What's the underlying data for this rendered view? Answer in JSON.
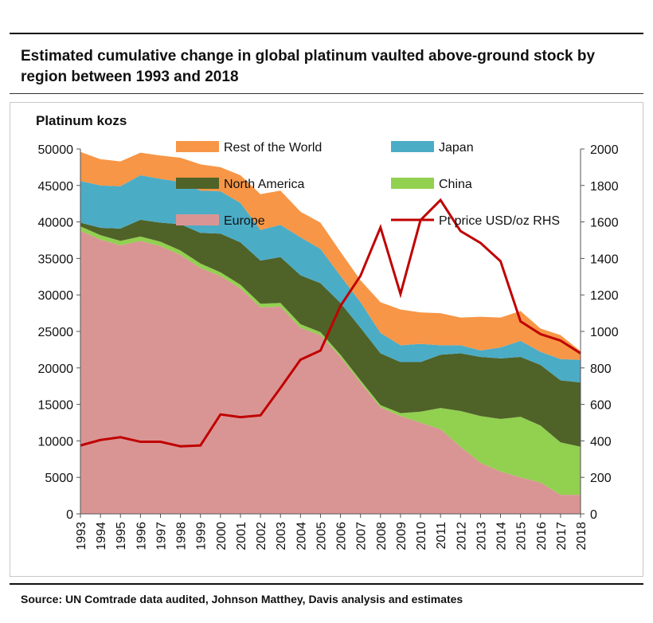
{
  "page": {
    "title": "Estimated cumulative change in global platinum vaulted above-ground stock by region between 1993 and 2018",
    "source": "Source: UN Comtrade data audited, Johnson Matthey, Davis analysis and estimates"
  },
  "chart_data": {
    "type": "area",
    "stacked": true,
    "ylabel": "Platinum kozs",
    "ylim": [
      0,
      50000
    ],
    "y_ticks": [
      "0",
      "5000",
      "10000",
      "15000",
      "20000",
      "25000",
      "30000",
      "35000",
      "40000",
      "45000",
      "50000"
    ],
    "y2lim": [
      0,
      2000
    ],
    "y2_ticks": [
      "0",
      "200",
      "400",
      "600",
      "800",
      "1000",
      "1200",
      "1400",
      "1600",
      "1800",
      "2000"
    ],
    "categories": [
      "1993",
      "1994",
      "1995",
      "1996",
      "1997",
      "1998",
      "1999",
      "2000",
      "2001",
      "2002",
      "2003",
      "2004",
      "2005",
      "2006",
      "2007",
      "2008",
      "2009",
      "2010",
      "2011",
      "2012",
      "2013",
      "2014",
      "2015",
      "2016",
      "2017",
      "2018"
    ],
    "series": [
      {
        "name": "Europe",
        "color": "#d99594",
        "values": [
          38800,
          37600,
          36800,
          37400,
          36700,
          35500,
          33700,
          32600,
          30900,
          28300,
          28400,
          25500,
          24500,
          21500,
          18000,
          14600,
          13400,
          12500,
          11600,
          9200,
          7000,
          5800,
          5000,
          4300,
          2600,
          2600
        ]
      },
      {
        "name": "China",
        "color": "#92d050",
        "values": [
          600,
          600,
          600,
          600,
          600,
          600,
          600,
          500,
          500,
          500,
          500,
          500,
          400,
          300,
          300,
          300,
          400,
          1500,
          2900,
          4900,
          6400,
          7200,
          8300,
          7800,
          7200,
          6600
        ]
      },
      {
        "name": "North America",
        "color": "#4f6228",
        "values": [
          500,
          1000,
          1700,
          2300,
          2600,
          3600,
          4200,
          5300,
          5800,
          5900,
          6300,
          6700,
          6700,
          7100,
          7200,
          7100,
          7000,
          6800,
          7300,
          7900,
          8100,
          8300,
          8200,
          8300,
          8500,
          8800
        ]
      },
      {
        "name": "Japan",
        "color": "#4bacc6",
        "values": [
          5700,
          5800,
          5800,
          6100,
          6000,
          5800,
          5800,
          5800,
          5400,
          4200,
          4400,
          5200,
          4700,
          3700,
          3500,
          2800,
          2300,
          2500,
          1300,
          1100,
          900,
          1500,
          2200,
          1800,
          2900,
          3100
        ]
      },
      {
        "name": "Rest of the World",
        "color": "#f79646",
        "values": [
          4000,
          3600,
          3400,
          3100,
          3200,
          3300,
          3600,
          3300,
          3800,
          4900,
          4700,
          3500,
          3600,
          3300,
          3000,
          4200,
          4900,
          4300,
          4400,
          3800,
          4600,
          4100,
          4100,
          3200,
          3300,
          1200
        ]
      }
    ],
    "line_series": {
      "name": "Pt price USD/oz RHS",
      "color": "#c00000",
      "axis": "right",
      "values": [
        375,
        405,
        420,
        395,
        395,
        370,
        375,
        545,
        530,
        540,
        690,
        845,
        895,
        1140,
        1305,
        1570,
        1205,
        1610,
        1720,
        1550,
        1485,
        1385,
        1055,
        985,
        950,
        880
      ]
    },
    "legend": [
      "Rest of the World",
      "Japan",
      "North America",
      "China",
      "Europe",
      "Pt price USD/oz RHS"
    ]
  }
}
